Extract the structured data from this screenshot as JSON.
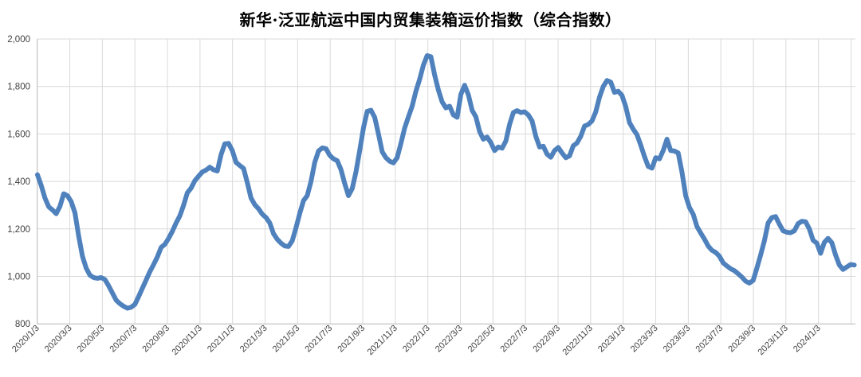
{
  "chart_data": {
    "type": "line",
    "title": "新华·泛亚航运中国内贸集装箱运价指数（综合指数）",
    "legend": null,
    "grid": true,
    "background_color": "#FFFFFF",
    "gridline_color": "#D9D9D9",
    "axis_line_color": "#BFBFBF",
    "tick_text_color": "#404040",
    "y_axis": {
      "min": 800,
      "max": 2000,
      "step": 200,
      "tick_labels": [
        "800",
        "1,000",
        "1,200",
        "1,400",
        "1,600",
        "1,800",
        "2,000"
      ]
    },
    "x_axis": {
      "tick_labels": [
        "2020/1/3",
        "2020/3/3",
        "2020/5/3",
        "2020/7/3",
        "2020/9/3",
        "2020/11/3",
        "2021/1/3",
        "2021/3/3",
        "2021/5/3",
        "2021/7/3",
        "2021/9/3",
        "2021/11/3",
        "2022/1/3",
        "2022/3/3",
        "2022/5/3",
        "2022/7/3",
        "2022/9/3",
        "2022/11/3",
        "2023/1/3",
        "2023/3/3",
        "2023/5/3",
        "2023/7/3",
        "2023/9/3",
        "2023/11/3",
        "2024/1/3"
      ],
      "has_trailing_unlabeled_gridline": true
    },
    "series": [
      {
        "name": "综合指数",
        "color": "#4F81BD",
        "start": "2020/1/3",
        "frequency": "weekly",
        "values": [
          1428,
          1383,
          1330,
          1293,
          1280,
          1264,
          1295,
          1348,
          1340,
          1315,
          1268,
          1170,
          1085,
          1035,
          1005,
          995,
          992,
          995,
          987,
          960,
          930,
          900,
          885,
          874,
          866,
          870,
          882,
          915,
          950,
          985,
          1020,
          1050,
          1082,
          1122,
          1135,
          1160,
          1190,
          1225,
          1255,
          1300,
          1352,
          1372,
          1403,
          1422,
          1440,
          1448,
          1460,
          1449,
          1444,
          1513,
          1558,
          1560,
          1530,
          1480,
          1467,
          1455,
          1395,
          1330,
          1302,
          1285,
          1262,
          1248,
          1225,
          1180,
          1156,
          1140,
          1128,
          1126,
          1150,
          1205,
          1265,
          1319,
          1340,
          1400,
          1480,
          1528,
          1541,
          1538,
          1510,
          1495,
          1487,
          1450,
          1391,
          1340,
          1370,
          1440,
          1530,
          1625,
          1695,
          1700,
          1670,
          1600,
          1525,
          1500,
          1485,
          1478,
          1500,
          1560,
          1625,
          1672,
          1717,
          1780,
          1830,
          1890,
          1930,
          1925,
          1848,
          1785,
          1735,
          1710,
          1717,
          1680,
          1670,
          1767,
          1805,
          1765,
          1700,
          1672,
          1610,
          1578,
          1587,
          1563,
          1530,
          1545,
          1540,
          1570,
          1640,
          1690,
          1698,
          1690,
          1693,
          1680,
          1655,
          1590,
          1545,
          1548,
          1515,
          1502,
          1530,
          1543,
          1520,
          1500,
          1508,
          1550,
          1562,
          1590,
          1633,
          1640,
          1655,
          1693,
          1755,
          1800,
          1825,
          1818,
          1775,
          1780,
          1762,
          1715,
          1648,
          1620,
          1597,
          1553,
          1505,
          1463,
          1456,
          1500,
          1495,
          1530,
          1578,
          1530,
          1528,
          1520,
          1440,
          1340,
          1290,
          1262,
          1210,
          1183,
          1157,
          1128,
          1110,
          1101,
          1085,
          1057,
          1044,
          1032,
          1024,
          1011,
          997,
          980,
          972,
          983,
          1035,
          1090,
          1150,
          1225,
          1248,
          1252,
          1220,
          1192,
          1186,
          1184,
          1192,
          1222,
          1232,
          1230,
          1200,
          1152,
          1140,
          1097,
          1143,
          1160,
          1142,
          1090,
          1048,
          1029,
          1040,
          1050,
          1048
        ]
      }
    ]
  }
}
